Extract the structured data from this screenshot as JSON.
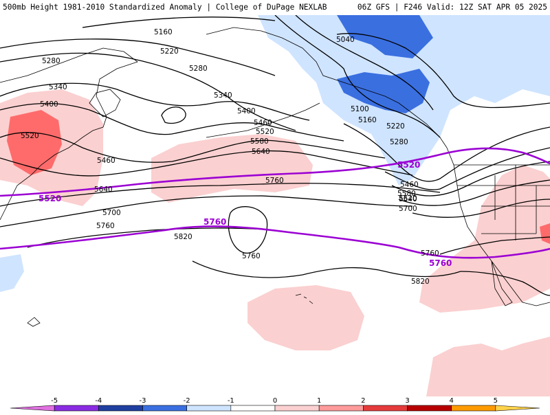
{
  "header": {
    "left_title": "500mb Height 1981-2010 Standardized Anomaly | College of DuPage NEXLAB",
    "right_title": "06Z GFS | F246 Valid: 12Z SAT APR 05 2025"
  },
  "contours": {
    "labels": [
      "5160",
      "5220",
      "5280",
      "5280",
      "5340",
      "5340",
      "5400",
      "5400",
      "5460",
      "5460",
      "5520",
      "5520",
      "5580",
      "5640",
      "5640",
      "5700",
      "5760",
      "5760",
      "5760",
      "5820",
      "5040",
      "5100",
      "5160",
      "5220",
      "5280",
      "5460",
      "5520",
      "5580",
      "5640",
      "5700",
      "5760",
      "5820"
    ],
    "highlight_labels": [
      "5520",
      "5520",
      "5760",
      "5760"
    ]
  },
  "colorbar": {
    "ticks": [
      "-5",
      "-4",
      "-3",
      "-2",
      "-1",
      "0",
      "1",
      "2",
      "3",
      "4",
      "5"
    ],
    "colors": [
      "#e070e0",
      "#8a2be2",
      "#1f3fa0",
      "#3a6fe0",
      "#cfe4ff",
      "#ffffff",
      "#fbd0d0",
      "#ff9a9a",
      "#e63b3b",
      "#b80000",
      "#ff9b00",
      "#ffd24a"
    ]
  }
}
